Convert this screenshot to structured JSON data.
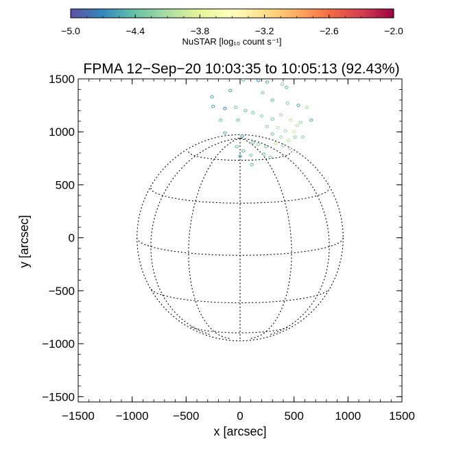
{
  "chart_data": {
    "type": "scatter",
    "title": "FPMA 12−Sep−20 10:03:35 to 10:05:13 (92.43%)",
    "xlabel": "x [arcsec]",
    "ylabel": "y [arcsec]",
    "xlim": [
      -1500,
      1500
    ],
    "ylim": [
      -1550,
      1500
    ],
    "x_ticks": [
      -1500,
      -1000,
      -500,
      0,
      500,
      1000,
      1500
    ],
    "x_tick_labels": [
      "−1500",
      "−1000",
      "−500",
      "0",
      "500",
      "1000",
      "1500"
    ],
    "y_ticks": [
      1500,
      1000,
      500,
      0,
      -500,
      -1000,
      -1500
    ],
    "y_tick_labels": [
      "1500",
      "1000",
      "500",
      "0",
      "−500",
      "−1000",
      "−1500"
    ],
    "grid": false,
    "overlay": {
      "type": "solar-disk-grid",
      "radius": 955,
      "b0_deg": 10,
      "latitudes_deg": [
        -60,
        -30,
        0,
        30,
        60
      ],
      "longitudes_deg": [
        -60,
        -30,
        0,
        30,
        60
      ],
      "line_style": "dotted"
    },
    "colorbar": {
      "label": "NuSTAR [log₁₀ count s⁻¹]",
      "range": [
        -5.0,
        -2.0
      ],
      "tick_values": [
        -5.0,
        -4.4,
        -3.8,
        -3.2,
        -2.6,
        -2.0
      ],
      "tick_labels": [
        "−5.0",
        "−4.4",
        "−3.8",
        "−3.2",
        "−2.6",
        "−2.0"
      ],
      "colormap": [
        "#5e4fa2",
        "#3288bd",
        "#66c2a5",
        "#abdda4",
        "#e6f598",
        "#ffffbf",
        "#fee08b",
        "#fdae61",
        "#f46d43",
        "#d53e4f",
        "#9e0142"
      ]
    },
    "points": [
      {
        "x": 30,
        "y": 1490,
        "v": -4.4
      },
      {
        "x": 170,
        "y": 1485,
        "v": -4.6
      },
      {
        "x": 250,
        "y": 1470,
        "v": -4.5
      },
      {
        "x": 390,
        "y": 1450,
        "v": -4.2
      },
      {
        "x": -90,
        "y": 1390,
        "v": -4.5
      },
      {
        "x": 430,
        "y": 1420,
        "v": -4.4
      },
      {
        "x": 210,
        "y": 1370,
        "v": -4.3
      },
      {
        "x": 300,
        "y": 1300,
        "v": -4.4
      },
      {
        "x": -140,
        "y": 1220,
        "v": -4.6
      },
      {
        "x": -250,
        "y": 1240,
        "v": -4.5
      },
      {
        "x": -40,
        "y": 1230,
        "v": -4.3
      },
      {
        "x": 440,
        "y": 1270,
        "v": -4.2
      },
      {
        "x": 540,
        "y": 1250,
        "v": -4.5
      },
      {
        "x": 620,
        "y": 1230,
        "v": -4.1
      },
      {
        "x": 50,
        "y": 1200,
        "v": -4.4
      },
      {
        "x": 120,
        "y": 1180,
        "v": -4.3
      },
      {
        "x": 200,
        "y": 1150,
        "v": -4.2
      },
      {
        "x": 300,
        "y": 1120,
        "v": -4.3
      },
      {
        "x": 380,
        "y": 1160,
        "v": -4.1
      },
      {
        "x": 470,
        "y": 1110,
        "v": -4.0
      },
      {
        "x": 560,
        "y": 1090,
        "v": -4.2
      },
      {
        "x": 660,
        "y": 1110,
        "v": -4.5
      },
      {
        "x": -180,
        "y": 1110,
        "v": -4.4
      },
      {
        "x": -20,
        "y": 1110,
        "v": -4.4
      },
      {
        "x": 250,
        "y": 1050,
        "v": -4.2
      },
      {
        "x": 350,
        "y": 1040,
        "v": -4.0
      },
      {
        "x": 420,
        "y": 1010,
        "v": -4.1
      },
      {
        "x": 500,
        "y": 1000,
        "v": -3.9
      },
      {
        "x": 530,
        "y": 1060,
        "v": -4.0
      },
      {
        "x": 580,
        "y": 950,
        "v": -4.2
      },
      {
        "x": 300,
        "y": 980,
        "v": -4.3
      },
      {
        "x": 380,
        "y": 950,
        "v": -4.1
      },
      {
        "x": 450,
        "y": 920,
        "v": -4.0
      },
      {
        "x": 510,
        "y": 950,
        "v": -4.2
      },
      {
        "x": -140,
        "y": 990,
        "v": -4.5
      },
      {
        "x": 120,
        "y": 900,
        "v": -4.4
      },
      {
        "x": 170,
        "y": 880,
        "v": -4.2
      },
      {
        "x": 240,
        "y": 860,
        "v": -4.3
      },
      {
        "x": 330,
        "y": 890,
        "v": -4.0
      },
      {
        "x": 400,
        "y": 870,
        "v": -4.2
      },
      {
        "x": 460,
        "y": 840,
        "v": -4.1
      },
      {
        "x": -30,
        "y": 860,
        "v": -4.4
      },
      {
        "x": 30,
        "y": 820,
        "v": -4.4
      },
      {
        "x": 100,
        "y": 780,
        "v": -4.3
      },
      {
        "x": 220,
        "y": 790,
        "v": -4.4
      },
      {
        "x": 280,
        "y": 760,
        "v": -4.3
      },
      {
        "x": 0,
        "y": 770,
        "v": -4.5
      },
      {
        "x": 110,
        "y": 690,
        "v": -4.4
      },
      {
        "x": 20,
        "y": 960,
        "v": -4.6
      },
      {
        "x": -260,
        "y": 1330,
        "v": -4.5
      }
    ]
  }
}
